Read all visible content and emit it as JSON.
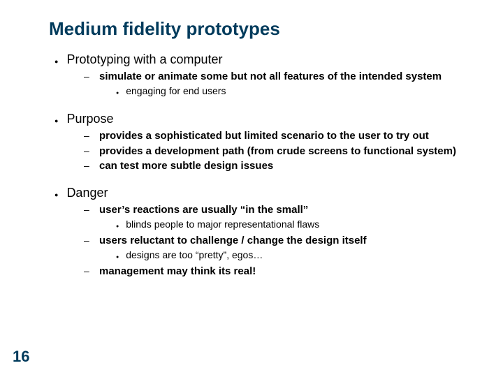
{
  "title": "Medium fidelity prototypes",
  "page_number": "16",
  "colors": {
    "heading": "#003b5c",
    "body": "#000000",
    "background": "#ffffff"
  },
  "typography": {
    "title_fontsize_pt": 26,
    "l1_fontsize_pt": 18,
    "l2_fontsize_pt": 15,
    "l3_fontsize_pt": 14,
    "font_family": "Arial"
  },
  "b1": {
    "text": "Prototyping with a computer",
    "sub": {
      "s1": {
        "text": "simulate or animate some but not all features of the intended system",
        "sub": {
          "t1": "engaging for end users"
        }
      }
    }
  },
  "b2": {
    "text": "Purpose",
    "sub": {
      "s1": "provides a sophisticated but limited scenario to the user to try out",
      "s2": "provides a development path (from crude screens to functional system)",
      "s3": "can test more subtle design issues"
    }
  },
  "b3": {
    "text": "Danger",
    "sub": {
      "s1": {
        "text": "user’s reactions are usually “in the small”",
        "sub": {
          "t1": "blinds people to major representational flaws"
        }
      },
      "s2": {
        "text": "users reluctant to challenge / change the design itself",
        "sub": {
          "t1": "designs are too “pretty”, egos…"
        }
      },
      "s3": {
        "text": "management may think its real!"
      }
    }
  }
}
